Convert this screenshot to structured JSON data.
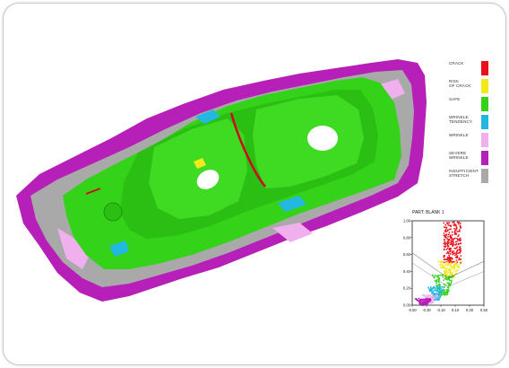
{
  "legend": {
    "items": [
      {
        "label": "CRACK",
        "color": "#e8121b"
      },
      {
        "label": "RISK\nOF CRACK",
        "color": "#f2e81a"
      },
      {
        "label": "SAFE",
        "color": "#35d21a"
      },
      {
        "label": "WRINKLE\nTENDENCY",
        "color": "#22b8e2"
      },
      {
        "label": "WRINKLE",
        "color": "#f0b0ee"
      },
      {
        "label": "SEVERE\nWRINKLE",
        "color": "#b620b8"
      },
      {
        "label": "INSUFFICIENT\nSTRETCH",
        "color": "#a9a9a9"
      }
    ]
  },
  "chart_data": {
    "type": "scatter",
    "title": "PART: BLANK 1",
    "xlabel": "",
    "ylabel": "",
    "xlim": [
      -0.5,
      0.5
    ],
    "ylim": [
      0,
      1
    ],
    "xticks": [
      "-0.50",
      "-0.30",
      "-0.10",
      "0.10",
      "0.30",
      "0.50"
    ],
    "yticks": [
      "0.00",
      "0.20",
      "0.40",
      "0.60",
      "0.80",
      "1.00"
    ],
    "regions": [
      {
        "name": "CRACK",
        "x": [
          -0.06,
          0.18
        ],
        "y": [
          0.5,
          1.0
        ],
        "color": "#e8121b"
      },
      {
        "name": "RISK OF CRACK",
        "x": [
          -0.14,
          0.2
        ],
        "y": [
          0.32,
          0.52
        ],
        "color": "#f2e81a"
      },
      {
        "name": "SAFE",
        "x": [
          -0.22,
          0.1
        ],
        "y": [
          0.12,
          0.36
        ],
        "color": "#35d21a"
      },
      {
        "name": "WRINKLE TENDENCY",
        "x": [
          -0.28,
          -0.04
        ],
        "y": [
          0.06,
          0.22
        ],
        "color": "#22b8e2"
      },
      {
        "name": "WRINKLE",
        "x": [
          -0.36,
          -0.14
        ],
        "y": [
          0.02,
          0.12
        ],
        "color": "#f0b0ee"
      },
      {
        "name": "SEVERE WRINKLE",
        "x": [
          -0.46,
          -0.22
        ],
        "y": [
          0.0,
          0.08
        ],
        "color": "#b620b8"
      }
    ]
  }
}
